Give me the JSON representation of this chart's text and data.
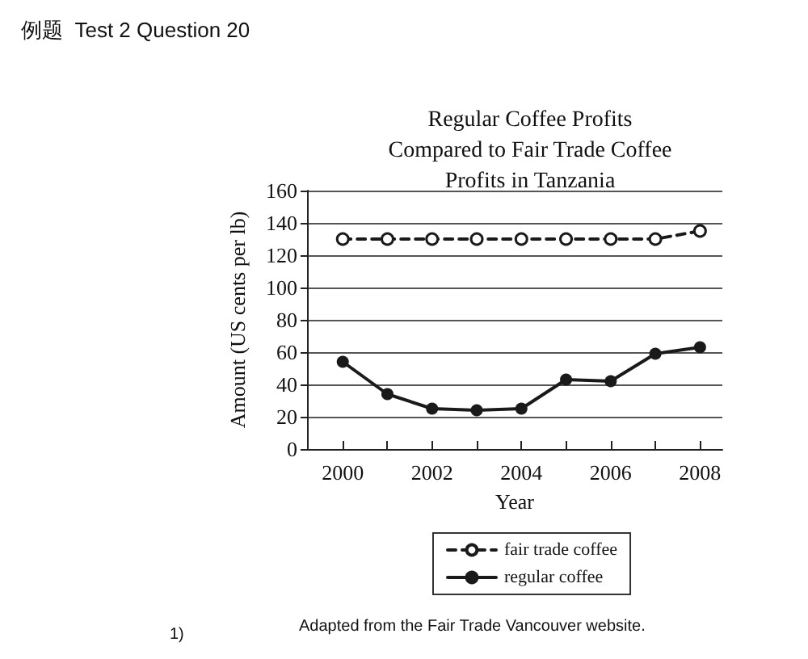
{
  "chart_data": {
    "type": "line",
    "title": "Regular Coffee Profits\nCompared to Fair Trade Coffee\nProfits in Tanzania",
    "xlabel": "Year",
    "ylabel": "Amount (US cents per lb)",
    "x": [
      2000,
      2001,
      2002,
      2003,
      2004,
      2005,
      2006,
      2007,
      2008
    ],
    "series": [
      {
        "name": "fair trade coffee",
        "color": "#1a1a1a",
        "line_style": "dashed",
        "marker": "circle",
        "values": [
          130,
          130,
          130,
          130,
          130,
          130,
          130,
          130,
          135
        ]
      },
      {
        "name": "regular coffee",
        "color": "#1a1a1a",
        "line_style": "solid",
        "marker": "circle",
        "values": [
          54,
          34,
          25,
          24,
          25,
          43,
          42,
          59,
          63
        ]
      }
    ],
    "xlim": [
      1999.2,
      2008.5
    ],
    "xticks": [
      2000,
      {
        "value": 2001,
        "label": null
      },
      2002,
      {
        "value": 2003,
        "label": null
      },
      2004,
      {
        "value": 2005,
        "label": null
      },
      2006,
      {
        "value": 2007,
        "label": null
      },
      2008
    ],
    "ylim": [
      0,
      160
    ],
    "yticks": [
      0,
      20,
      40,
      60,
      80,
      100,
      120,
      140,
      160
    ],
    "grid": "y",
    "legend": "bottom",
    "annotations": [
      "例题  Test 2 Question 20",
      "1)",
      "Adapted from the Fair Trade Vancouver website."
    ]
  }
}
